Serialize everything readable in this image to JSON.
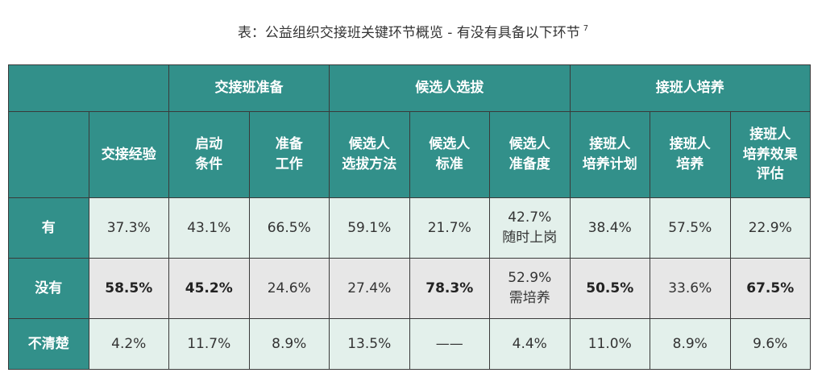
{
  "title": "表：公益组织交接班关键环节概览 - 有没有具备以下环节",
  "title_note": "7",
  "table": {
    "group_header": [
      {
        "text": "",
        "span": 2
      },
      {
        "text": "交接班准备",
        "span": 2
      },
      {
        "text": "候选人选拔",
        "span": 3
      },
      {
        "text": "接班人培养",
        "span": 3
      }
    ],
    "header": [
      "",
      "交接经验",
      "启动\n条件",
      "准备\n工作",
      "候选人\n选拔方法",
      "候选人\n标准",
      "候选人\n准备度",
      "接班人\n培养计划",
      "接班人\n培养",
      "接班人\n培养效果\n评估"
    ],
    "rows": [
      {
        "label": "有",
        "cells": [
          "37.3%",
          "43.1%",
          "66.5%",
          "59.1%",
          "21.7%",
          "42.7%\n随时上岗",
          "38.4%",
          "57.5%",
          "22.9%"
        ],
        "bold": [
          false,
          false,
          false,
          false,
          false,
          false,
          false,
          false,
          false
        ],
        "shade": "#e3f0eb"
      },
      {
        "label": "没有",
        "cells": [
          "58.5%",
          "45.2%",
          "24.6%",
          "27.4%",
          "78.3%",
          "52.9%\n需培养",
          "50.5%",
          "33.6%",
          "67.5%"
        ],
        "bold": [
          true,
          true,
          false,
          false,
          true,
          false,
          true,
          false,
          true
        ],
        "shade": "#e7e7e7"
      },
      {
        "label": "不清楚",
        "cells": [
          "4.2%",
          "11.7%",
          "8.9%",
          "13.5%",
          "——",
          "4.4%",
          "11.0%",
          "8.9%",
          "9.6%"
        ],
        "bold": [
          false,
          false,
          false,
          false,
          false,
          false,
          false,
          false,
          false
        ],
        "shade": "#e3f0eb"
      }
    ]
  }
}
